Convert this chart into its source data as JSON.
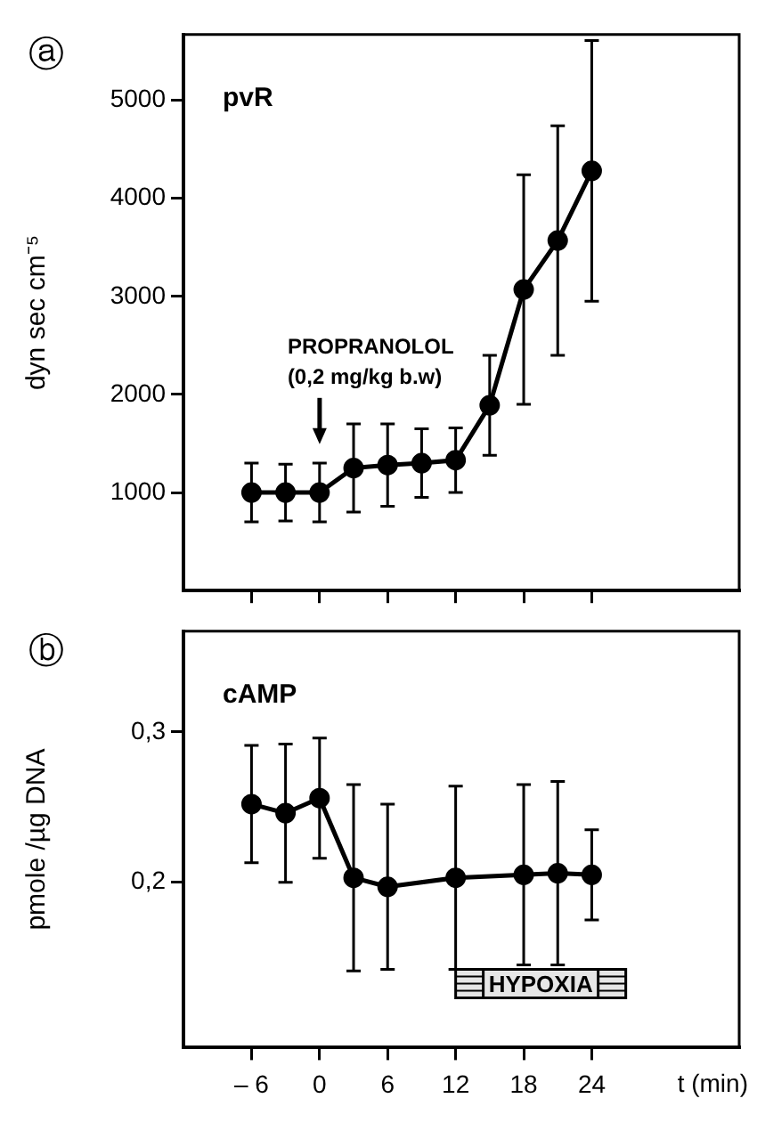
{
  "chart_data": [
    {
      "type": "line",
      "title": "ⓐ",
      "ylabel": "dyn sec cm⁻⁵",
      "xlim": [
        -12,
        37
      ],
      "xticks": [
        {
          "value": -6,
          "label": null
        },
        {
          "value": 0,
          "label": null
        },
        {
          "value": 6,
          "label": null
        },
        {
          "value": 12,
          "label": null
        },
        {
          "value": 18,
          "label": null
        },
        {
          "value": 24,
          "label": null
        }
      ],
      "ylim": [
        0,
        5670
      ],
      "yticks": [
        1000,
        2000,
        3000,
        4000,
        5000
      ],
      "tick_labels": "y",
      "marker": "circle",
      "line_style": "solid",
      "series": [
        {
          "color": "#000000",
          "x": [
            -6,
            -3,
            0,
            3,
            6,
            9,
            12,
            15,
            18,
            21,
            24
          ],
          "values": [
            1000,
            1000,
            1000,
            1250,
            1280,
            1300,
            1330,
            1890,
            3070,
            3570,
            4280
          ],
          "errors": [
            300,
            290,
            300,
            450,
            420,
            350,
            330,
            510,
            1170,
            1170,
            1330
          ]
        }
      ],
      "annotations": [
        "pvR",
        "PROPRANOLOL\n(0,2 mg/kg b.w)"
      ]
    },
    {
      "type": "line",
      "title": "ⓑ",
      "ylabel": "pmole /µg DNA",
      "xlabel": "t (min)",
      "xlim": [
        -12,
        37
      ],
      "xticks": [
        {
          "value": -6,
          "label": "– 6"
        },
        0,
        6,
        12,
        18,
        24
      ],
      "ylim": [
        0.09,
        0.367
      ],
      "yticks": [
        {
          "value": 0.2,
          "label": "0,2"
        },
        {
          "value": 0.3,
          "label": "0,3"
        }
      ],
      "marker": "circle",
      "line_style": "solid",
      "series": [
        {
          "color": "#000000",
          "x": [
            -6,
            -3,
            0,
            3,
            6,
            12,
            18,
            21,
            24
          ],
          "values": [
            0.252,
            0.246,
            0.256,
            0.203,
            0.197,
            0.203,
            0.205,
            0.206,
            0.205
          ],
          "errors": [
            0.039,
            0.046,
            0.04,
            0.062,
            0.055,
            0.061,
            0.06,
            0.061,
            0.03
          ]
        }
      ],
      "annotations": [
        "cAMP"
      ],
      "bands": [
        {
          "axis": "x",
          "from": 12,
          "to": 27,
          "label": "HYPOXIA"
        }
      ]
    }
  ]
}
